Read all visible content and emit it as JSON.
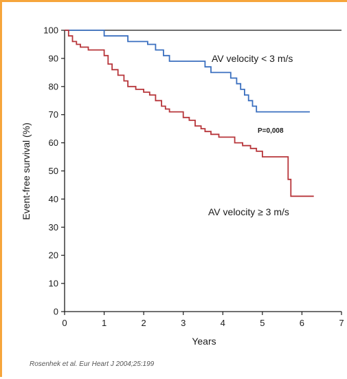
{
  "chart_data": {
    "type": "line",
    "title": "",
    "xlabel": "Years",
    "ylabel": "Event-free survival (%)",
    "xlim": [
      0,
      7
    ],
    "ylim": [
      0,
      100
    ],
    "x_ticks": [
      "0",
      "1",
      "2",
      "3",
      "4",
      "5",
      "6",
      "7"
    ],
    "y_ticks": [
      "0",
      "10",
      "20",
      "30",
      "40",
      "50",
      "60",
      "70",
      "80",
      "90",
      "100"
    ],
    "grid": false,
    "series": [
      {
        "name": "AV velocity < 3 m/s",
        "color": "#3a6fbf",
        "x": [
          0,
          1.0,
          1.0,
          1.6,
          1.6,
          2.1,
          2.1,
          2.3,
          2.3,
          2.5,
          2.5,
          2.65,
          2.65,
          3.55,
          3.55,
          3.7,
          3.7,
          4.2,
          4.2,
          4.35,
          4.35,
          4.45,
          4.45,
          4.55,
          4.55,
          4.65,
          4.65,
          4.75,
          4.75,
          4.85,
          4.85,
          5.0,
          5.0,
          6.2
        ],
        "y": [
          100,
          100,
          98,
          98,
          96,
          96,
          95,
          95,
          93,
          93,
          91,
          91,
          89,
          89,
          87,
          87,
          85,
          85,
          83,
          83,
          81,
          81,
          79,
          79,
          77,
          77,
          75,
          75,
          73,
          73,
          71,
          71,
          71,
          71
        ]
      },
      {
        "name": "AV velocity ≥ 3 m/s",
        "color": "#b7353a",
        "x": [
          0,
          0.1,
          0.1,
          0.2,
          0.2,
          0.3,
          0.3,
          0.4,
          0.4,
          0.5,
          0.5,
          0.6,
          0.6,
          0.75,
          0.75,
          1.0,
          1.0,
          1.1,
          1.1,
          1.2,
          1.2,
          1.35,
          1.35,
          1.5,
          1.5,
          1.6,
          1.6,
          1.8,
          1.8,
          2.0,
          2.0,
          2.15,
          2.15,
          2.3,
          2.3,
          2.45,
          2.45,
          2.55,
          2.55,
          2.65,
          2.65,
          2.75,
          2.75,
          3.0,
          3.0,
          3.15,
          3.15,
          3.3,
          3.3,
          3.45,
          3.45,
          3.55,
          3.55,
          3.7,
          3.7,
          3.9,
          3.9,
          4.3,
          4.3,
          4.5,
          4.5,
          4.7,
          4.7,
          4.85,
          4.85,
          5.0,
          5.0,
          5.65,
          5.65,
          5.72,
          5.72,
          6.3
        ],
        "y": [
          100,
          100,
          98,
          98,
          96,
          96,
          95,
          95,
          94,
          94,
          94,
          94,
          93,
          93,
          93,
          93,
          91,
          91,
          88,
          88,
          86,
          86,
          84,
          84,
          82,
          82,
          80,
          80,
          79,
          79,
          78,
          78,
          77,
          77,
          75,
          75,
          73,
          73,
          72,
          72,
          71,
          71,
          71,
          71,
          69,
          69,
          68,
          68,
          66,
          66,
          65,
          65,
          64,
          64,
          63,
          63,
          62,
          62,
          60,
          60,
          59,
          59,
          58,
          58,
          57,
          57,
          55,
          55,
          47,
          47,
          41,
          41
        ]
      }
    ],
    "annotations": {
      "upper_label": "AV velocity < 3 m/s",
      "lower_label": "AV velocity ≥ 3 m/s",
      "p_value": "P=0,008"
    },
    "footer": "Rosenhek et al. Eur Heart J 2004;25:199"
  }
}
